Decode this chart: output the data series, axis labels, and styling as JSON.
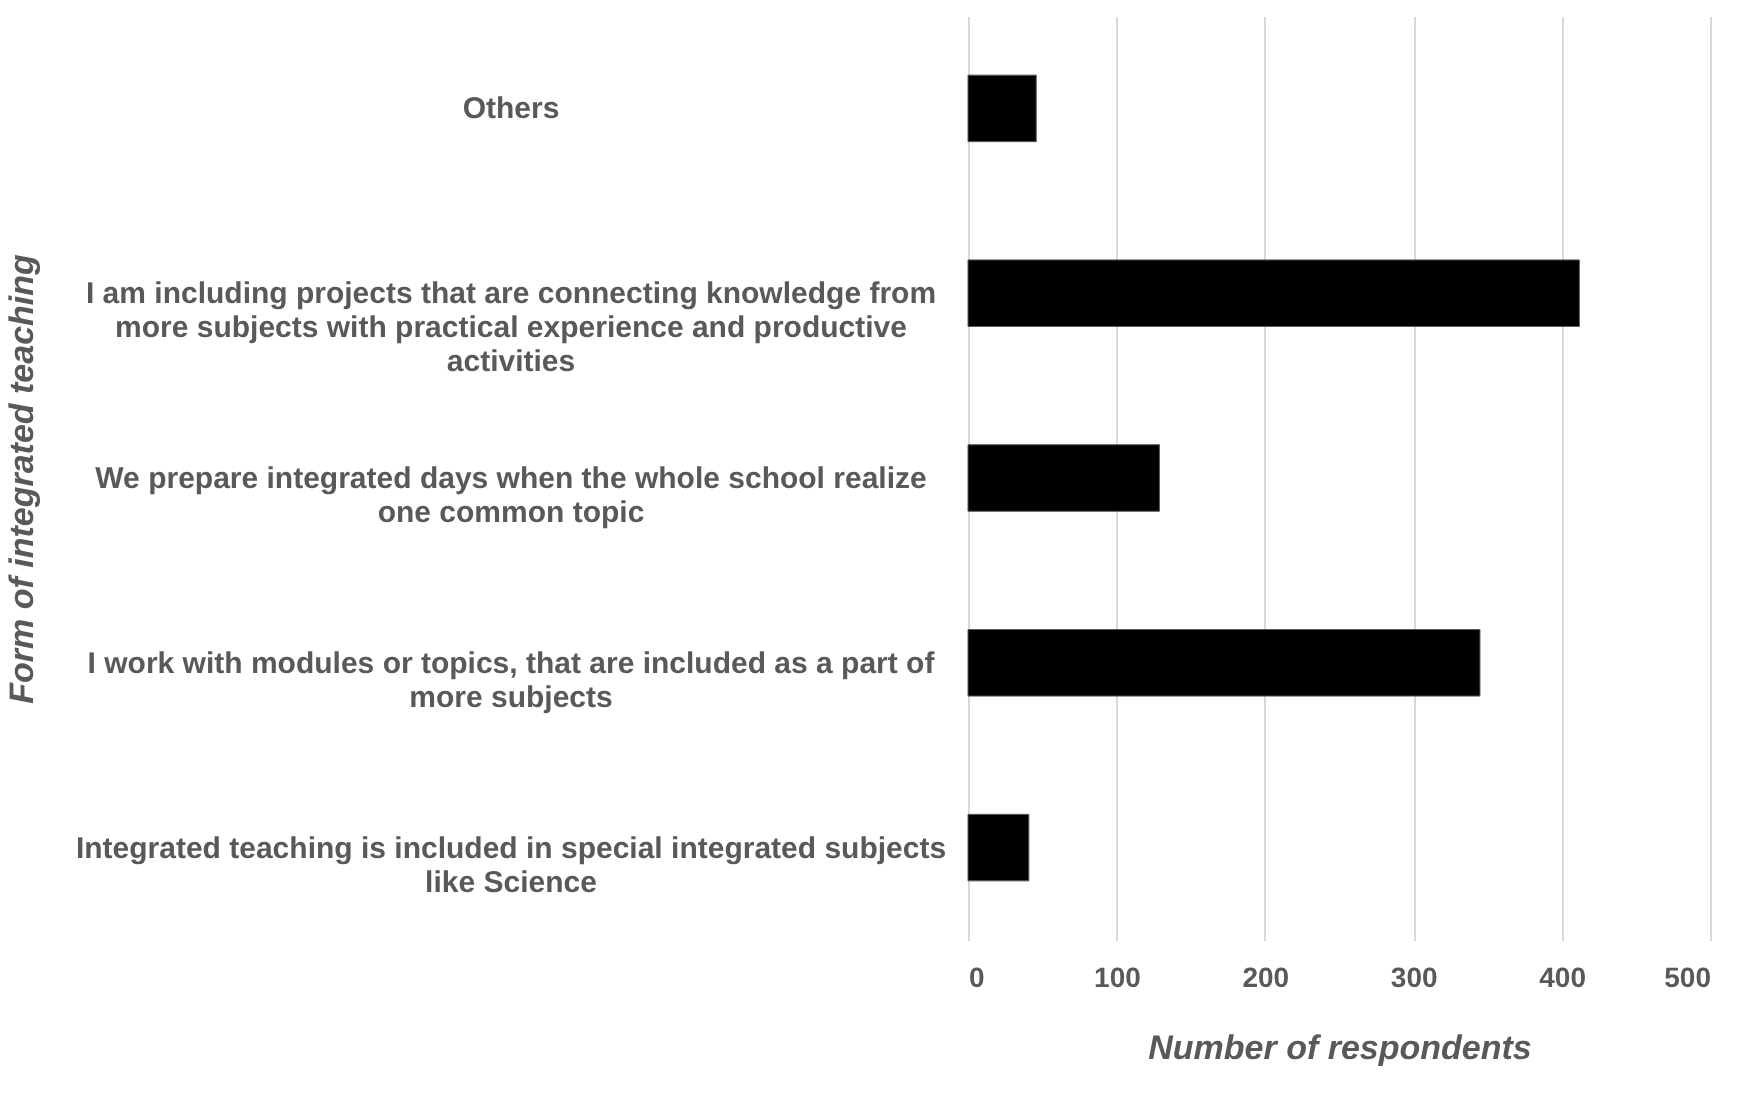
{
  "chart_data": {
    "type": "bar",
    "orientation": "horizontal",
    "xlabel": "Number of respondents",
    "ylabel": "Form of integrated teaching",
    "categories": [
      "Others",
      "I am including projects that are connecting knowledge from more subjects with practical experience and productive activities",
      "We prepare integrated days when the whole school realize one common topic",
      "I work with modules or topics, that are included as a part of more subjects",
      "Integrated teaching is included in special integrated subjects like Science"
    ],
    "values": [
      46,
      412,
      129,
      345,
      41
    ],
    "color": "#000000",
    "xlim": [
      0,
      500
    ],
    "xticks": [
      0,
      100,
      200,
      300,
      400,
      500
    ],
    "grid": "x"
  }
}
